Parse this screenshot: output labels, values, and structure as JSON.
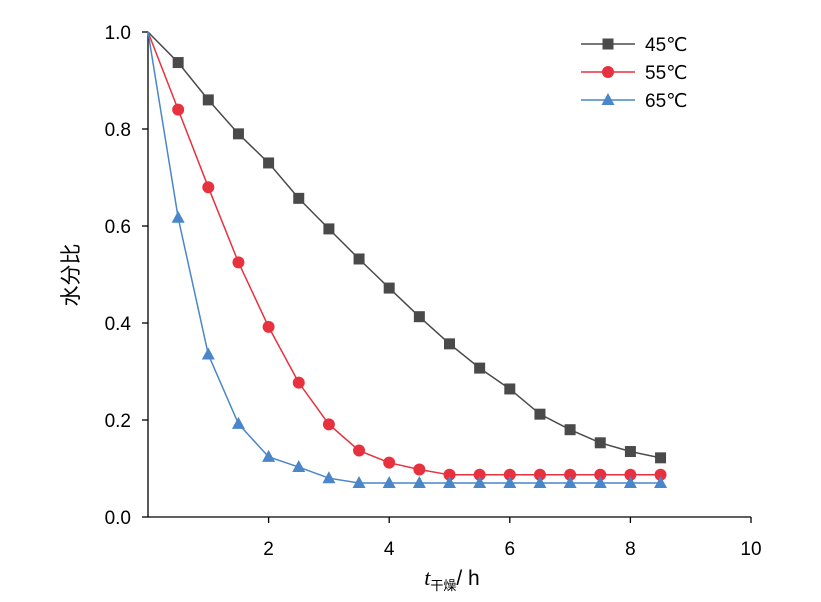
{
  "chart_data": {
    "type": "line",
    "title": "",
    "xlabel_main": "t",
    "xlabel_sub": "干燥",
    "xlabel_unit": "/ h",
    "ylabel": "水分比",
    "xlim": [
      0,
      10
    ],
    "ylim": [
      0,
      1.0
    ],
    "x_ticks": [
      2,
      4,
      6,
      8,
      10
    ],
    "x_tick_labels": [
      "2",
      "4",
      "6",
      "8",
      "10"
    ],
    "y_ticks": [
      0.0,
      0.2,
      0.4,
      0.6,
      0.8,
      1.0
    ],
    "y_tick_labels": [
      "0.0",
      "0.2",
      "0.4",
      "0.6",
      "0.8",
      "1.0"
    ],
    "grid": false,
    "legend_position": "top-right",
    "x": [
      0,
      0.5,
      1.0,
      1.5,
      2.0,
      2.5,
      3.0,
      3.5,
      4.0,
      4.5,
      5.0,
      5.5,
      6.0,
      6.5,
      7.0,
      7.5,
      8.0,
      8.5
    ],
    "series": [
      {
        "name": "45℃",
        "color": "#4a4a4a",
        "marker": "square",
        "values": [
          1.0,
          0.937,
          0.86,
          0.79,
          0.73,
          0.657,
          0.594,
          0.532,
          0.472,
          0.413,
          0.357,
          0.307,
          0.264,
          0.212,
          0.18,
          0.153,
          0.135,
          0.122
        ]
      },
      {
        "name": "55℃",
        "color": "#e8313f",
        "marker": "circle",
        "values": [
          1.0,
          0.84,
          0.68,
          0.525,
          0.392,
          0.277,
          0.191,
          0.137,
          0.112,
          0.098,
          0.087,
          0.087,
          0.087,
          0.087,
          0.087,
          0.087,
          0.087,
          0.087
        ]
      },
      {
        "name": "65℃",
        "color": "#4a86c8",
        "marker": "triangle",
        "values": [
          1.0,
          0.617,
          0.335,
          0.192,
          0.124,
          0.103,
          0.08,
          0.07,
          0.07,
          0.07,
          0.07,
          0.07,
          0.07,
          0.07,
          0.07,
          0.07,
          0.07,
          0.07
        ]
      }
    ]
  }
}
